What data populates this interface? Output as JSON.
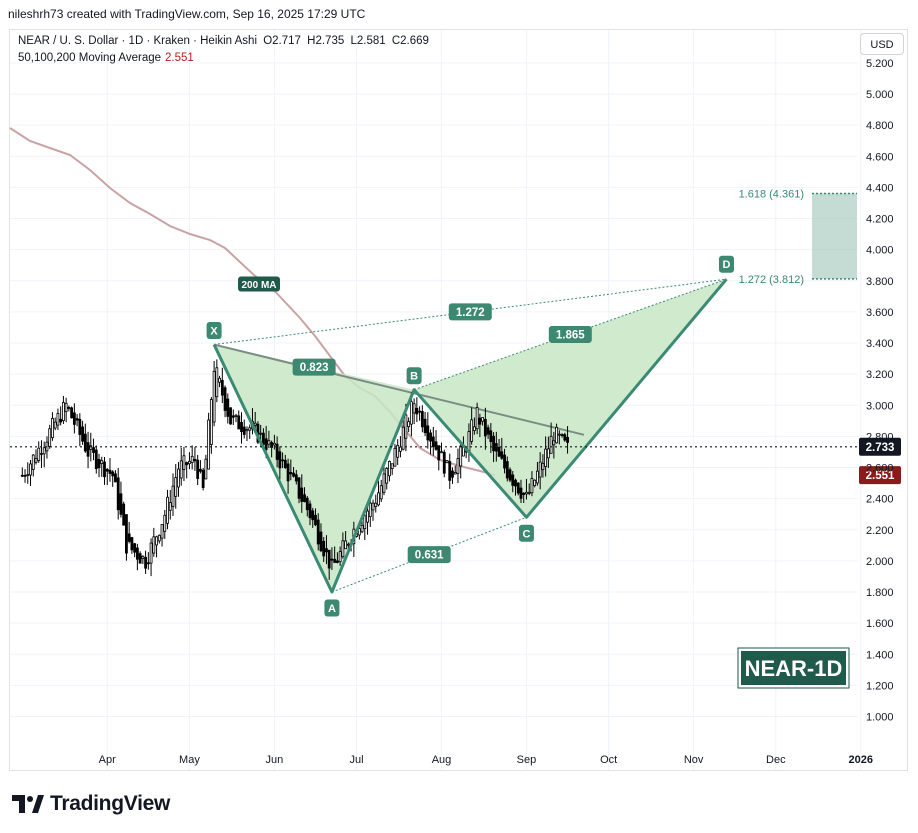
{
  "header": {
    "credit": "nileshrh73 created with TradingView.com, Sep 16, 2025 17:29 UTC"
  },
  "legend": {
    "symbol_line": "NEAR / U. S. Dollar · 1D · Kraken · Heikin Ashi",
    "ohlc": {
      "o": "O2.717",
      "h": "H2.735",
      "l": "L2.581",
      "c": "C2.669"
    },
    "ma_label": "50,100,200 Moving Average",
    "ma_value": "2.551"
  },
  "currency_button": "USD",
  "branding": {
    "badge": "NEAR-1D",
    "logo_text": "TradingView"
  },
  "colors": {
    "pattern_fill": "#c8e6c4",
    "pattern_line": "#3a8a74",
    "label_bg": "#3d8870",
    "ma_line": "#c9a3a3",
    "badge_bg": "#1f5a4a",
    "price_tag": "#131722",
    "ma_tag": "#8b1a1a",
    "target_zone": "#9cc4b8"
  },
  "chart_data": {
    "type": "candlestick",
    "chart_style": "Heikin Ashi",
    "timeframe": "1D",
    "xaxis": {
      "ticks": [
        "Apr",
        "May",
        "Jun",
        "Jul",
        "Aug",
        "Sep",
        "Oct",
        "Nov",
        "Dec",
        "2026"
      ]
    },
    "yaxis": {
      "ticks": [
        "1.000",
        "1.200",
        "1.400",
        "1.600",
        "1.800",
        "2.000",
        "2.200",
        "2.400",
        "2.600",
        "2.800",
        "3.000",
        "3.200",
        "3.400",
        "3.600",
        "3.800",
        "4.000",
        "4.200",
        "4.400",
        "4.600",
        "4.800",
        "5.000",
        "5.200"
      ],
      "range": [
        0.85,
        5.25
      ]
    },
    "current_price": "2.733",
    "ma_200_value": "2.551",
    "ma_label": "200 MA",
    "harmonic": {
      "points": [
        {
          "name": "X",
          "date": "2025-05-10",
          "price": 3.39
        },
        {
          "name": "A",
          "date": "2025-06-22",
          "price": 1.8
        },
        {
          "name": "B",
          "date": "2025-07-22",
          "price": 3.1
        },
        {
          "name": "C",
          "date": "2025-09-01",
          "price": 2.28
        },
        {
          "name": "D",
          "date": "2025-11-13",
          "price": 3.81
        }
      ],
      "ratios": [
        {
          "label": "0.823",
          "from": "X",
          "to": "B"
        },
        {
          "label": "0.631",
          "from": "A",
          "to": "C"
        },
        {
          "label": "1.272",
          "from": "X",
          "to": "D"
        },
        {
          "label": "1.865",
          "from": "B",
          "to": "D"
        }
      ]
    },
    "targets": [
      {
        "label": "1.618 (4.361)",
        "price": 4.361
      },
      {
        "label": "1.272 (3.812)",
        "price": 3.812
      }
    ],
    "resistance_line": {
      "from": {
        "date": "2025-05-10",
        "price": 3.39
      },
      "to": {
        "date": "2025-09-22",
        "price": 2.81
      }
    }
  }
}
